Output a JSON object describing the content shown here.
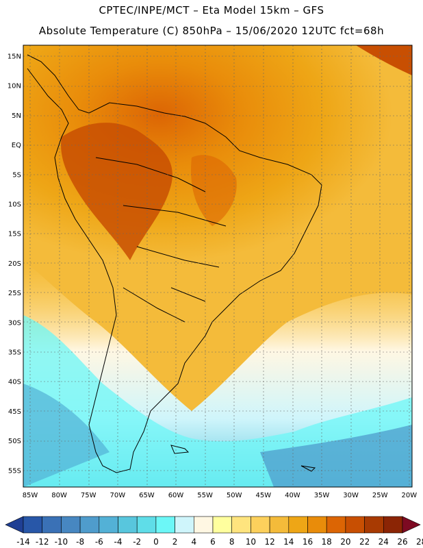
{
  "title_line1": "CPTEC/INPE/MCT –  Eta Model 15km – GFS",
  "title_line2": "Absolute Temperature (C) 850hPa – 15/06/2020 12UTC fct=68h",
  "lat_labels": [
    "15N",
    "10N",
    "5N",
    "EQ",
    "5S",
    "10S",
    "15S",
    "20S",
    "25S",
    "30S",
    "35S",
    "40S",
    "45S",
    "50S",
    "55S"
  ],
  "lon_labels": [
    "85W",
    "80W",
    "75W",
    "70W",
    "65W",
    "60W",
    "55W",
    "50W",
    "45W",
    "40W",
    "35W",
    "30W",
    "25W",
    "20W"
  ],
  "colorbar": {
    "colors": [
      "#1f3f94",
      "#2857a8",
      "#3a71b6",
      "#4787c1",
      "#4f9ccc",
      "#53b1d6",
      "#58c6dd",
      "#5fdde8",
      "#6cf7f7",
      "#cff5fb",
      "#fff7e3",
      "#ffff9e",
      "#fee47e",
      "#fcd05c",
      "#f4bb3a",
      "#eea616",
      "#e98c0a",
      "#dc6504",
      "#c84f02",
      "#a83a02",
      "#8b2505",
      "#7d0a22"
    ],
    "labels": [
      "-14",
      "-12",
      "-10",
      "-8",
      "-6",
      "-4",
      "-2",
      "0",
      "2",
      "4",
      "6",
      "8",
      "10",
      "12",
      "14",
      "16",
      "18",
      "20",
      "22",
      "24",
      "26",
      "28"
    ]
  }
}
